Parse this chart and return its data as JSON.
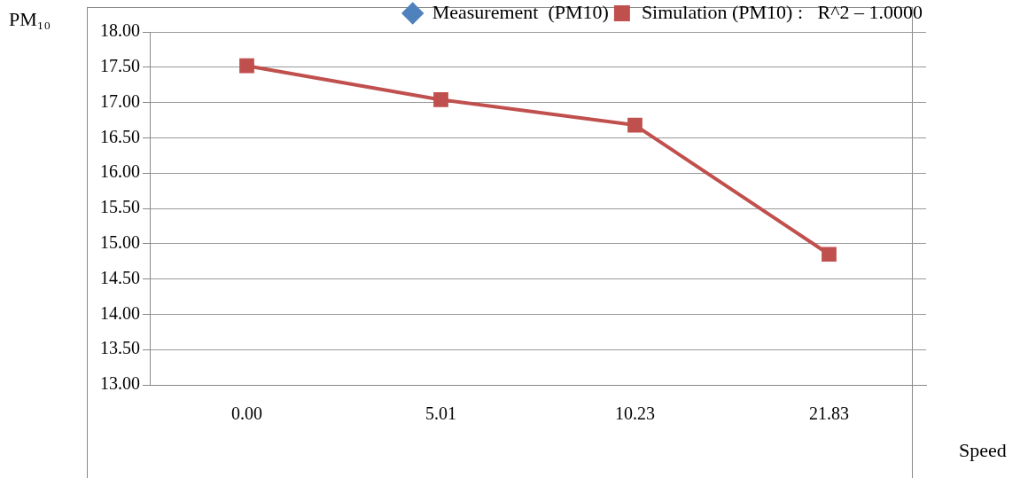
{
  "chart_data": {
    "type": "line",
    "ylabel": "PM₁₀",
    "xlabel": "Speed",
    "categories": [
      "0.00",
      "5.01",
      "10.23",
      "21.83"
    ],
    "ylim": [
      13,
      18
    ],
    "yticks": [
      {
        "value": 13,
        "label": "13.00"
      },
      {
        "value": 13.5,
        "label": "13.50"
      },
      {
        "value": 14,
        "label": "14.00"
      },
      {
        "value": 14.5,
        "label": "14.50"
      },
      {
        "value": 15,
        "label": "15.00"
      },
      {
        "value": 15.5,
        "label": "15.50"
      },
      {
        "value": 16,
        "label": "16.00"
      },
      {
        "value": 16.5,
        "label": "16.50"
      },
      {
        "value": 17,
        "label": "17.00"
      },
      {
        "value": 17.5,
        "label": "17.50"
      },
      {
        "value": 18,
        "label": "18.00"
      }
    ],
    "series": [
      {
        "name": "Measurement  (PM10)",
        "color": "#4f81bd",
        "marker": "diamond",
        "values": [
          null,
          null,
          null,
          null
        ]
      },
      {
        "name": "Simulation (PM10) :   R^2 – 1.0000",
        "color": "#c0504d",
        "marker": "square",
        "values": [
          17.52,
          17.04,
          16.68,
          14.85
        ]
      }
    ],
    "grid": "y",
    "legend": "top right",
    "line_style": "solid"
  }
}
